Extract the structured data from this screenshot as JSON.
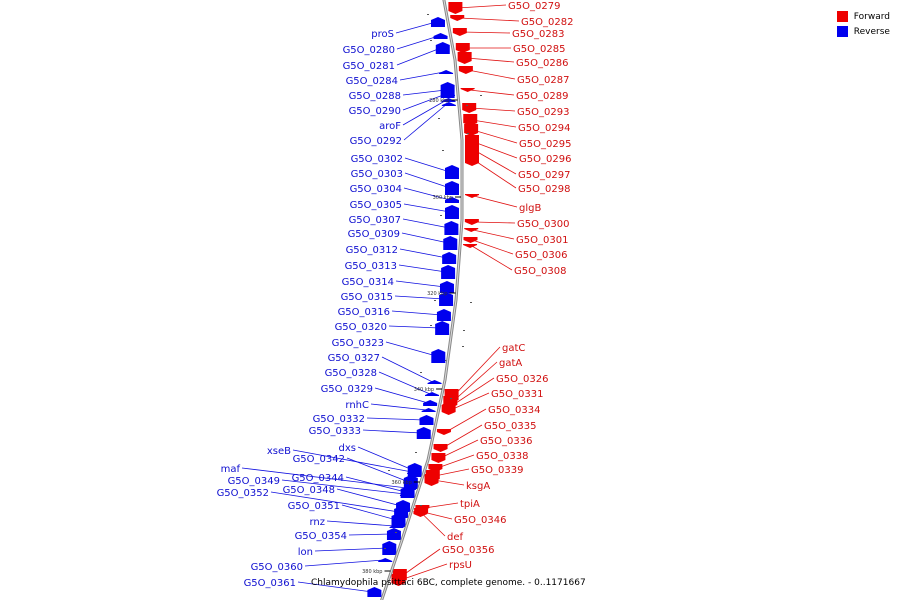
{
  "legend": {
    "forward": {
      "label": "Forward",
      "color": "#ee0000"
    },
    "reverse": {
      "label": "Reverse",
      "color": "#0000ee"
    }
  },
  "caption": "Chlamydophila psittaci 6BC, complete genome. - 0..1171667",
  "ticks": [
    "280 kbp",
    "300 kbp",
    "320 kbp",
    "340 kbp",
    "360 kbp",
    "380 kbp"
  ],
  "reverse_labels": [
    "proS",
    "G5O_0280",
    "G5O_0281",
    "G5O_0284",
    "G5O_0288",
    "G5O_0290",
    "aroF",
    "G5O_0292",
    "G5O_0302",
    "G5O_0303",
    "G5O_0304",
    "G5O_0305",
    "G5O_0307",
    "G5O_0309",
    "G5O_0312",
    "G5O_0313",
    "G5O_0314",
    "G5O_0315",
    "G5O_0316",
    "G5O_0320",
    "G5O_0323",
    "G5O_0327",
    "G5O_0328",
    "G5O_0329",
    "rnhC",
    "G5O_0332",
    "G5O_0333",
    "dxs",
    "xseB",
    "G5O_0342",
    "maf",
    "G5O_0344",
    "G5O_0349",
    "G5O_0348",
    "G5O_0352",
    "G5O_0351",
    "rnz",
    "G5O_0354",
    "lon",
    "G5O_0360",
    "G5O_0361"
  ],
  "forward_labels": [
    "G5O_0279",
    "G5O_0282",
    "G5O_0283",
    "G5O_0285",
    "G5O_0286",
    "G5O_0287",
    "G5O_0289",
    "G5O_0293",
    "G5O_0294",
    "G5O_0295",
    "G5O_0296",
    "G5O_0297",
    "G5O_0298",
    "glgB",
    "G5O_0300",
    "G5O_0301",
    "G5O_0306",
    "G5O_0308",
    "gatC",
    "gatA",
    "G5O_0326",
    "G5O_0331",
    "G5O_0334",
    "G5O_0335",
    "G5O_0336",
    "G5O_0338",
    "G5O_0339",
    "ksgA",
    "tpiA",
    "G5O_0346",
    "def",
    "G5O_0356",
    "rpsU"
  ]
}
